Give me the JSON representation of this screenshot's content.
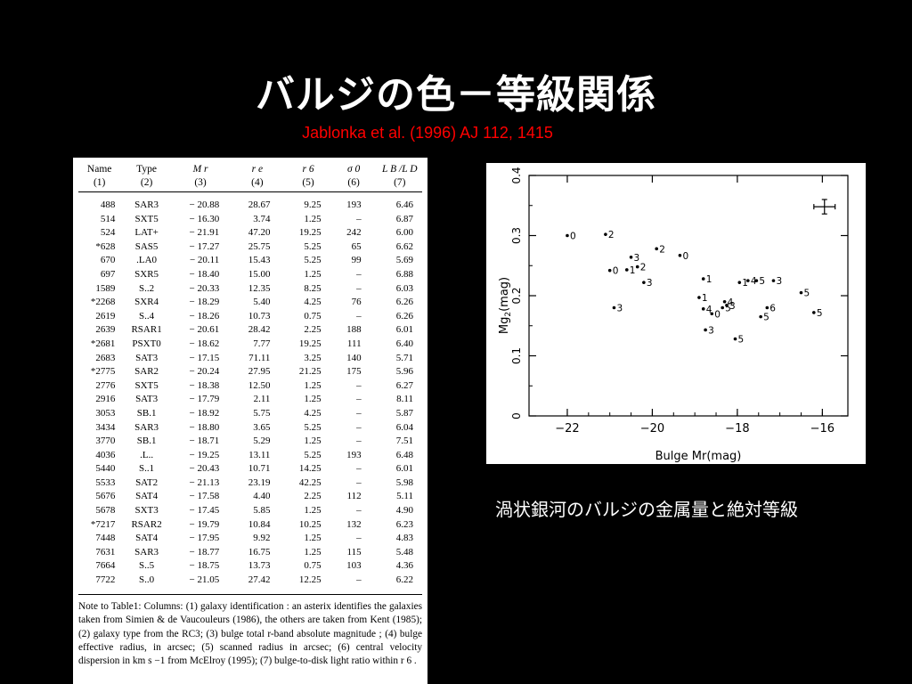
{
  "title": "バルジの色－等級関係",
  "citation": "Jablonka et al. (1996) AJ 112, 1415",
  "caption": "渦状銀河のバルジの金属量と絶対等級",
  "table": {
    "headers": [
      {
        "label": "Name",
        "num": "(1)"
      },
      {
        "label": "Type",
        "num": "(2)"
      },
      {
        "label": "M r",
        "num": "(3)"
      },
      {
        "label": "r e",
        "num": "(4)"
      },
      {
        "label": "r 6",
        "num": "(5)"
      },
      {
        "label": "σ 0",
        "num": "(6)"
      },
      {
        "label": "L B /L D",
        "num": "(7)"
      }
    ],
    "rows": [
      [
        "488",
        "SAR3",
        "− 20.88",
        "28.67",
        "9.25",
        "193",
        "6.46"
      ],
      [
        "514",
        "SXT5",
        "− 16.30",
        "3.74",
        "1.25",
        "–",
        "6.87"
      ],
      [
        "524",
        "LAT+",
        "− 21.91",
        "47.20",
        "19.25",
        "242",
        "6.00"
      ],
      [
        "*628",
        "SAS5",
        "− 17.27",
        "25.75",
        "5.25",
        "65",
        "6.62"
      ],
      [
        "670",
        ".LA0",
        "− 20.11",
        "15.43",
        "5.25",
        "99",
        "5.69"
      ],
      [
        "697",
        "SXR5",
        "− 18.40",
        "15.00",
        "1.25",
        "–",
        "6.88"
      ],
      [
        "1589",
        "S..2",
        "− 20.33",
        "12.35",
        "8.25",
        "–",
        "6.03"
      ],
      [
        "*2268",
        "SXR4",
        "− 18.29",
        "5.40",
        "4.25",
        "76",
        "6.26"
      ],
      [
        "2619",
        "S..4",
        "− 18.26",
        "10.73",
        "0.75",
        "–",
        "6.26"
      ],
      [
        "2639",
        "RSAR1",
        "− 20.61",
        "28.42",
        "2.25",
        "188",
        "6.01"
      ],
      [
        "*2681",
        "PSXT0",
        "− 18.62",
        "7.77",
        "19.25",
        "111",
        "6.40"
      ],
      [
        "2683",
        "SAT3",
        "− 17.15",
        "71.11",
        "3.25",
        "140",
        "5.71"
      ],
      [
        "*2775",
        "SAR2",
        "− 20.24",
        "27.95",
        "21.25",
        "175",
        "5.96"
      ],
      [
        "2776",
        "SXT5",
        "− 18.38",
        "12.50",
        "1.25",
        "–",
        "6.27"
      ],
      [
        "2916",
        "SAT3",
        "− 17.79",
        "2.11",
        "1.25",
        "–",
        "8.11"
      ],
      [
        "3053",
        "SB.1",
        "− 18.92",
        "5.75",
        "4.25",
        "–",
        "5.87"
      ],
      [
        "3434",
        "SAR3",
        "− 18.80",
        "3.65",
        "5.25",
        "–",
        "6.04"
      ],
      [
        "3770",
        "SB.1",
        "− 18.71",
        "5.29",
        "1.25",
        "–",
        "7.51"
      ],
      [
        "4036",
        ".L..",
        "− 19.25",
        "13.11",
        "5.25",
        "193",
        "6.48"
      ],
      [
        "5440",
        "S..1",
        "− 20.43",
        "10.71",
        "14.25",
        "–",
        "6.01"
      ],
      [
        "5533",
        "SAT2",
        "− 21.13",
        "23.19",
        "42.25",
        "–",
        "5.98"
      ],
      [
        "5676",
        "SAT4",
        "− 17.58",
        "4.40",
        "2.25",
        "112",
        "5.11"
      ],
      [
        "5678",
        "SXT3",
        "− 17.45",
        "5.85",
        "1.25",
        "–",
        "4.90"
      ],
      [
        "*7217",
        "RSAR2",
        "− 19.79",
        "10.84",
        "10.25",
        "132",
        "6.23"
      ],
      [
        "7448",
        "SAT4",
        "− 17.95",
        "9.92",
        "1.25",
        "–",
        "4.83"
      ],
      [
        "7631",
        "SAR3",
        "− 18.77",
        "16.75",
        "1.25",
        "115",
        "5.48"
      ],
      [
        "7664",
        "S..5",
        "− 18.75",
        "13.73",
        "0.75",
        "103",
        "4.36"
      ],
      [
        "7722",
        "S..0",
        "− 21.05",
        "27.42",
        "12.25",
        "–",
        "6.22"
      ]
    ],
    "note": "Note to Table1: Columns: (1) galaxy identification : an asterix identifies the galaxies taken from Simien & de Vaucouleurs (1986), the others are taken from Kent (1985); (2) galaxy type from the RC3; (3) bulge total r-band absolute magnitude ; (4) bulge effective radius, in arcsec; (5) scanned radius in arcsec; (6) central velocity dispersion in km s −1 from McElroy (1995); (7) bulge-to-disk light ratio within r 6 ."
  },
  "chart_data": {
    "type": "scatter",
    "xlabel": "Bulge Mr(mag)",
    "ylabel": "Mg2(mag)",
    "xlim": [
      -22.9,
      -15.4
    ],
    "ylim": [
      0,
      0.4
    ],
    "xticks": [
      -22,
      -20,
      -18,
      -16
    ],
    "yticks": [
      0,
      0.1,
      0.2,
      0.3,
      0.4
    ],
    "points": [
      {
        "x": -22.0,
        "y": 0.3,
        "label": "0"
      },
      {
        "x": -21.1,
        "y": 0.302,
        "label": "2"
      },
      {
        "x": -20.9,
        "y": 0.18,
        "label": "3"
      },
      {
        "x": -21.0,
        "y": 0.242,
        "label": "0"
      },
      {
        "x": -20.6,
        "y": 0.243,
        "label": "1"
      },
      {
        "x": -20.5,
        "y": 0.264,
        "label": "3"
      },
      {
        "x": -20.35,
        "y": 0.248,
        "label": "2"
      },
      {
        "x": -20.2,
        "y": 0.222,
        "label": "3"
      },
      {
        "x": -19.9,
        "y": 0.278,
        "label": "2"
      },
      {
        "x": -19.35,
        "y": 0.267,
        "label": "0"
      },
      {
        "x": -18.9,
        "y": 0.197,
        "label": "1"
      },
      {
        "x": -18.8,
        "y": 0.228,
        "label": "1"
      },
      {
        "x": -18.8,
        "y": 0.178,
        "label": "4"
      },
      {
        "x": -18.75,
        "y": 0.143,
        "label": "3"
      },
      {
        "x": -18.6,
        "y": 0.17,
        "label": "0"
      },
      {
        "x": -18.35,
        "y": 0.18,
        "label": "5"
      },
      {
        "x": -18.3,
        "y": 0.19,
        "label": "4"
      },
      {
        "x": -18.25,
        "y": 0.184,
        "label": "3"
      },
      {
        "x": -18.05,
        "y": 0.128,
        "label": "5"
      },
      {
        "x": -17.95,
        "y": 0.222,
        "label": "1"
      },
      {
        "x": -17.75,
        "y": 0.225,
        "label": "4"
      },
      {
        "x": -17.55,
        "y": 0.225,
        "label": "5"
      },
      {
        "x": -17.45,
        "y": 0.165,
        "label": "5"
      },
      {
        "x": -17.3,
        "y": 0.18,
        "label": "6"
      },
      {
        "x": -17.15,
        "y": 0.225,
        "label": "3"
      },
      {
        "x": -16.5,
        "y": 0.205,
        "label": "5"
      },
      {
        "x": -16.2,
        "y": 0.172,
        "label": "5"
      }
    ],
    "error_bar": {
      "x": -15.95,
      "y": 0.348,
      "xerr": 0.25,
      "yerr": 0.012
    }
  }
}
